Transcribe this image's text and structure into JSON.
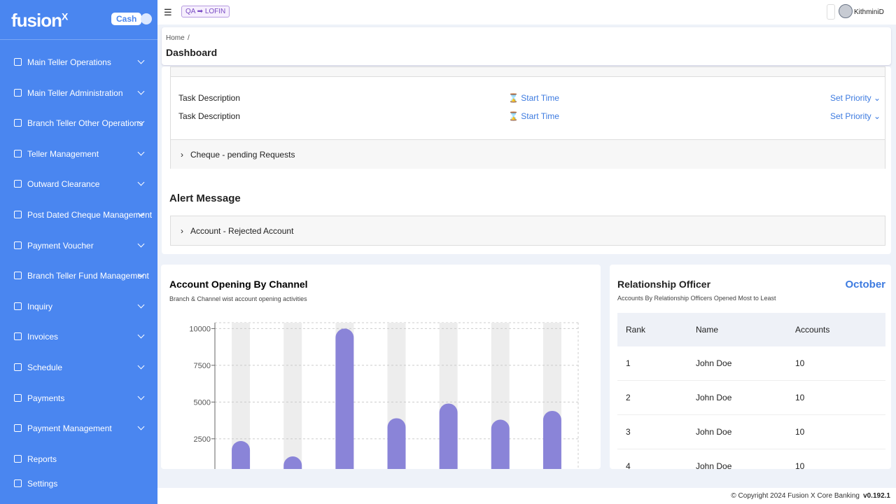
{
  "sidebar": {
    "brand": "fusion",
    "brand_mark": "X",
    "badge": "Cash",
    "menu": [
      "Main Teller Operations",
      "Main Teller Administration",
      "Branch Teller Other Operations",
      "Teller Management",
      "Outward Clearance",
      "Post Dated Cheque Management",
      "Payment Voucher",
      "Branch Teller Fund Management",
      "Inquiry",
      "Invoices",
      "Schedule",
      "Payments",
      "Payment Management"
    ],
    "links": [
      "Reports",
      "Settings"
    ]
  },
  "topbar": {
    "env": "QA ➡ LOFIN",
    "user": "KithminiD"
  },
  "breadcrumb": {
    "home": "Home",
    "separator": "/",
    "title": "Dashboard"
  },
  "tasks": [
    {
      "description": "Task Description",
      "time": "Start Time",
      "priority": "Set Priority"
    },
    {
      "description": "Task Description",
      "time": "Start Time",
      "priority": "Set Priority"
    }
  ],
  "cheque_panel": "Cheque - pending Requests",
  "alert": {
    "title": "Alert Message",
    "item": "Account - Rejected Account"
  },
  "chart_data": {
    "type": "bar",
    "title": "Account Opening By Channel",
    "subtitle": "Branch & Channel wist account opening activities",
    "categories": [
      null,
      null,
      null,
      null,
      null,
      null,
      null
    ],
    "values": [
      2350,
      1300,
      10000,
      3900,
      4900,
      3800,
      4400
    ],
    "color": "#8a84d8",
    "track_color": "#ededed",
    "ylim": [
      0,
      10400
    ],
    "yticks": [
      2500,
      5000,
      7500,
      10000
    ],
    "grid": true
  },
  "officer": {
    "title": "Relationship Officer",
    "subtitle": "Accounts By Relationship Officers Opened Most to Least",
    "month": "October",
    "columns": [
      "Rank",
      "Name",
      "Accounts"
    ],
    "rows": [
      [
        1,
        "John Doe",
        10
      ],
      [
        2,
        "John Doe",
        10
      ],
      [
        3,
        "John Doe",
        10
      ],
      [
        4,
        "John Doe",
        10
      ]
    ]
  },
  "footer": {
    "copyright": "© Copyright 2024 Fusion X Core Banking",
    "version": "v0.192.1"
  }
}
